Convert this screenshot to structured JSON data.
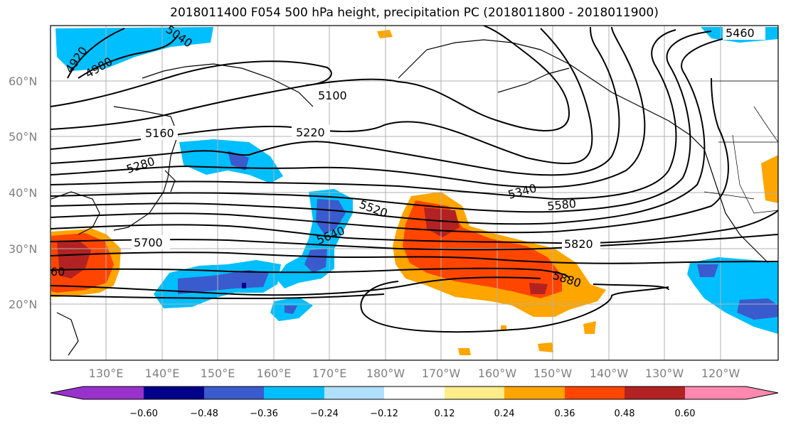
{
  "title": "2018011400 F054 500 hPa height, precipitation PC (2018011800 - 2018011900)",
  "map": {
    "lat_ticks": [
      "60°N",
      "50°N",
      "40°N",
      "30°N",
      "20°N"
    ],
    "lon_ticks": [
      "130°E",
      "140°E",
      "150°E",
      "160°E",
      "170°E",
      "180°W",
      "170°W",
      "160°W",
      "150°W",
      "140°W",
      "130°W",
      "120°W"
    ],
    "contour_labels": [
      "4920",
      "4980",
      "5040",
      "5100",
      "5160",
      "5220",
      "5280",
      "5340",
      "5460",
      "5520",
      "5580",
      "5640",
      "5700",
      "5820",
      "5880",
      "60"
    ]
  },
  "colorbar": {
    "ticks": [
      "−0.60",
      "−0.48",
      "−0.36",
      "−0.24",
      "−0.12",
      "0.12",
      "0.24",
      "0.36",
      "0.48",
      "0.60"
    ],
    "colors": [
      "#9932cc",
      "#00008b",
      "#3a5bcd",
      "#00bfff",
      "#b0e0ff",
      "#ffffff",
      "#ffec8b",
      "#ffa500",
      "#ff4500",
      "#b22222",
      "#ff88b0"
    ]
  }
}
